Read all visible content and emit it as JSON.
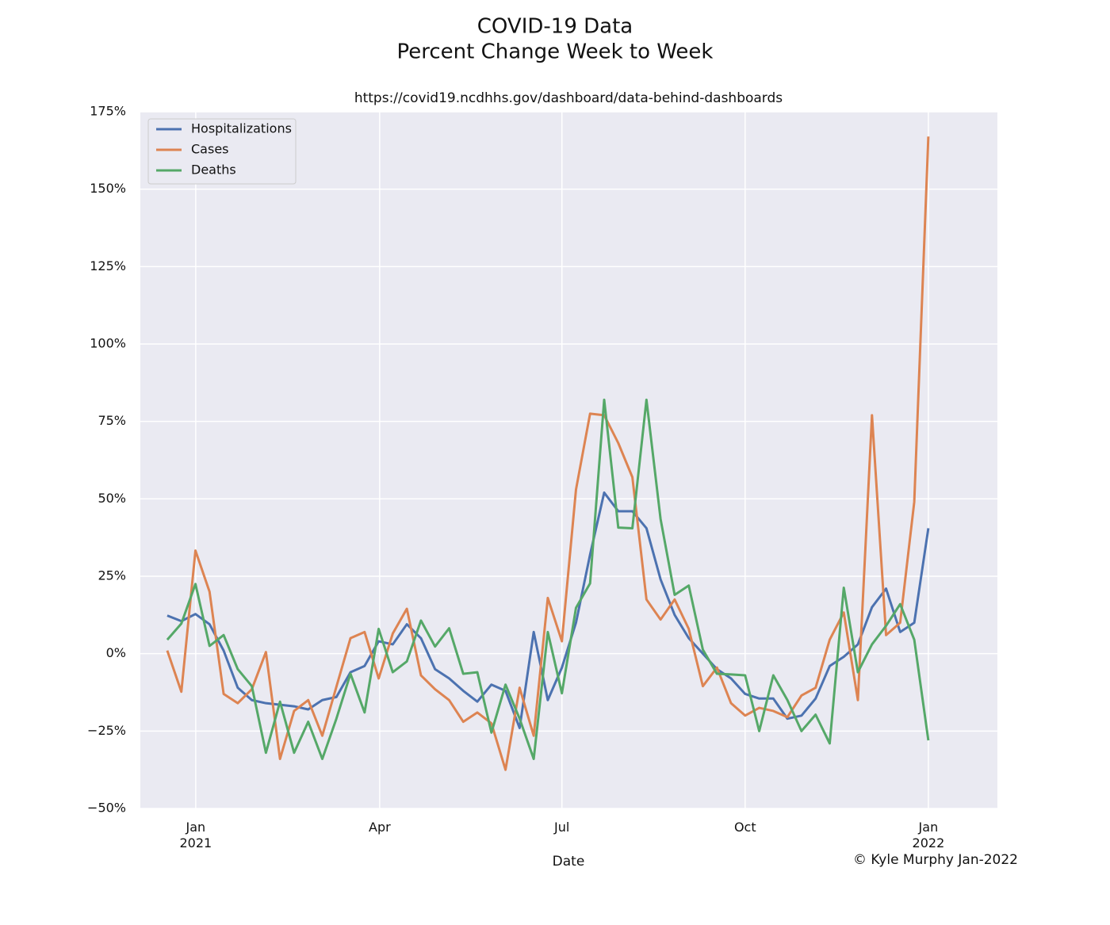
{
  "chart_data": {
    "type": "line",
    "title": "COVID-19 Data",
    "subtitle": "Percent Change Week to Week",
    "source": "https://covid19.ncdhhs.gov/dashboard/data-behind-dashboards",
    "xlabel": "Date",
    "credit": "© Kyle Murphy Jan-2022",
    "xlim": [
      -1.91,
      58.9
    ],
    "xticks": [
      {
        "value": 2.02,
        "label": "Jan\n2021"
      },
      {
        "value": 15.07,
        "label": "Apr"
      },
      {
        "value": 28.0,
        "label": "Jul"
      },
      {
        "value": 41.0,
        "label": "Oct"
      },
      {
        "value": 54.0,
        "label": "Jan\n2022"
      }
    ],
    "ylim": [
      -50,
      175
    ],
    "yticks": [
      {
        "value": -50,
        "label": "−50%"
      },
      {
        "value": -25,
        "label": "−25%"
      },
      {
        "value": 0,
        "label": "0%"
      },
      {
        "value": 25,
        "label": "25%"
      },
      {
        "value": 50,
        "label": "50%"
      },
      {
        "value": 75,
        "label": "75%"
      },
      {
        "value": 100,
        "label": "100%"
      },
      {
        "value": 125,
        "label": "125%"
      },
      {
        "value": 150,
        "label": "150%"
      },
      {
        "value": 175,
        "label": "175%"
      }
    ],
    "grid": true,
    "legend": "upper-left",
    "series": [
      {
        "name": "Hospitalizations",
        "color": "#4c72b0",
        "values": [
          12.3,
          10.5,
          12.8,
          9.5,
          1,
          -11,
          -15,
          -16,
          -16.5,
          -17,
          -18,
          -15,
          -14,
          -6,
          -4,
          4,
          3,
          9.5,
          5,
          -5,
          -8,
          -12,
          -15.5,
          -10,
          -12,
          -24,
          7,
          -15,
          -4.5,
          10,
          32,
          52,
          46,
          46,
          40.5,
          24,
          12.5,
          5,
          0,
          -5,
          -8,
          -13,
          -14.5,
          -14.5,
          -21,
          -20,
          -14.5,
          -4,
          -1,
          3,
          15,
          21,
          7,
          10,
          40.5
        ]
      },
      {
        "name": "Cases",
        "color": "#dd8452",
        "values": [
          1,
          -12.3,
          33.3,
          20,
          -13,
          -16,
          -11.5,
          0.5,
          -34,
          -18.5,
          -15,
          -26.5,
          -10.7,
          5,
          7,
          -8,
          6.5,
          14.5,
          -7,
          -11.5,
          -15,
          -22,
          -19,
          -22.5,
          -37.5,
          -11,
          -26.5,
          18,
          4,
          53,
          77.5,
          77,
          68,
          57,
          17.5,
          11,
          17.5,
          8,
          -10.5,
          -4.5,
          -16,
          -20,
          -17.5,
          -18.5,
          -20.5,
          -13.5,
          -11,
          4.5,
          13.3,
          -15,
          77,
          6,
          10,
          49,
          167
        ]
      },
      {
        "name": "Deaths",
        "color": "#55a868",
        "values": [
          4.5,
          9.7,
          22.5,
          2.5,
          6,
          -5,
          -10.5,
          -32,
          -15.5,
          -32,
          -22,
          -34,
          -21,
          -6.5,
          -19,
          8,
          -6,
          -2.5,
          10.7,
          2.3,
          8.2,
          -6.5,
          -6,
          -25.5,
          -10,
          -21,
          -34,
          7,
          -12.8,
          14.8,
          22.7,
          82,
          40.7,
          40.5,
          82,
          43.5,
          19,
          22,
          1.3,
          -6.5,
          -6.7,
          -7,
          -25,
          -7,
          -15,
          -25,
          -19.7,
          -29,
          21.3,
          -6,
          3,
          9,
          16,
          4.5,
          -28
        ]
      }
    ]
  }
}
